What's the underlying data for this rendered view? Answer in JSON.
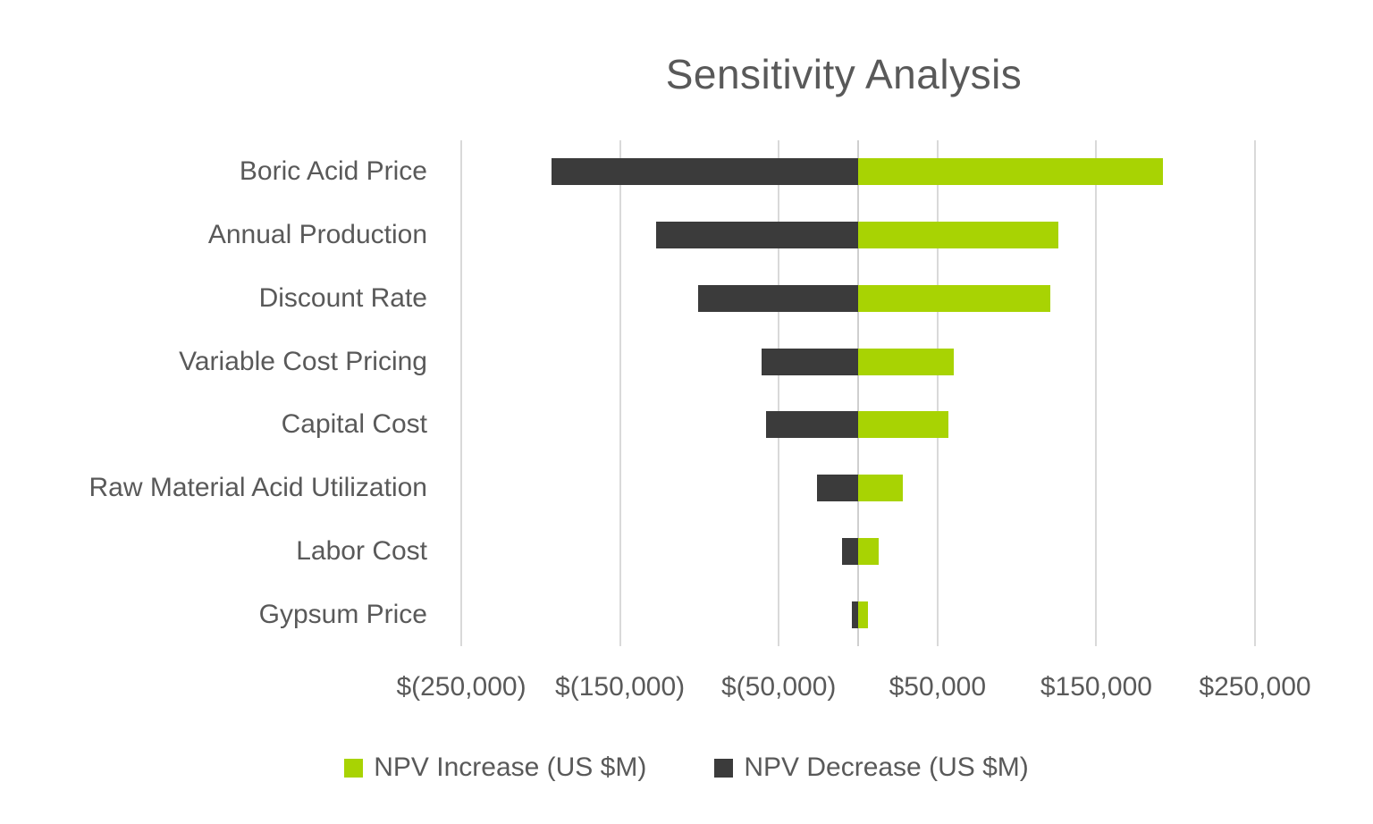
{
  "chart_data": {
    "type": "bar",
    "subtype": "tornado",
    "orientation": "horizontal",
    "title": "Sensitivity Analysis",
    "categories": [
      "Boric Acid Price",
      "Annual Production",
      "Discount Rate",
      "Variable Cost Pricing",
      "Capital Cost",
      "Raw Material Acid Utilization",
      "Labor Cost",
      "Gypsum Price"
    ],
    "series": [
      {
        "name": "NPV Increase (US $M)",
        "color": "#A8D303",
        "values": [
          192000,
          126000,
          121000,
          60000,
          57000,
          28000,
          13000,
          6000
        ]
      },
      {
        "name": "NPV Decrease (US $M)",
        "color": "#3B3B3B",
        "values": [
          -193000,
          -127000,
          -101000,
          -61000,
          -58000,
          -26000,
          -10000,
          -4000
        ]
      }
    ],
    "x_axis": {
      "min": -250000,
      "max": 250000,
      "ticks": [
        {
          "value": -250000,
          "label": "$(250,000)"
        },
        {
          "value": -150000,
          "label": "$(150,000)"
        },
        {
          "value": -50000,
          "label": "$(50,000)"
        },
        {
          "value": 50000,
          "label": "$50,000"
        },
        {
          "value": 150000,
          "label": "$150,000"
        },
        {
          "value": 250000,
          "label": "$250,000"
        }
      ]
    },
    "grid": true,
    "legend_position": "bottom",
    "colors": {
      "background": "#FFFFFF",
      "text": "#595959",
      "gridline": "#D9D9D9",
      "zero_axis": "#CFCFCF",
      "increase": "#A8D303",
      "decrease": "#3B3B3B"
    }
  }
}
